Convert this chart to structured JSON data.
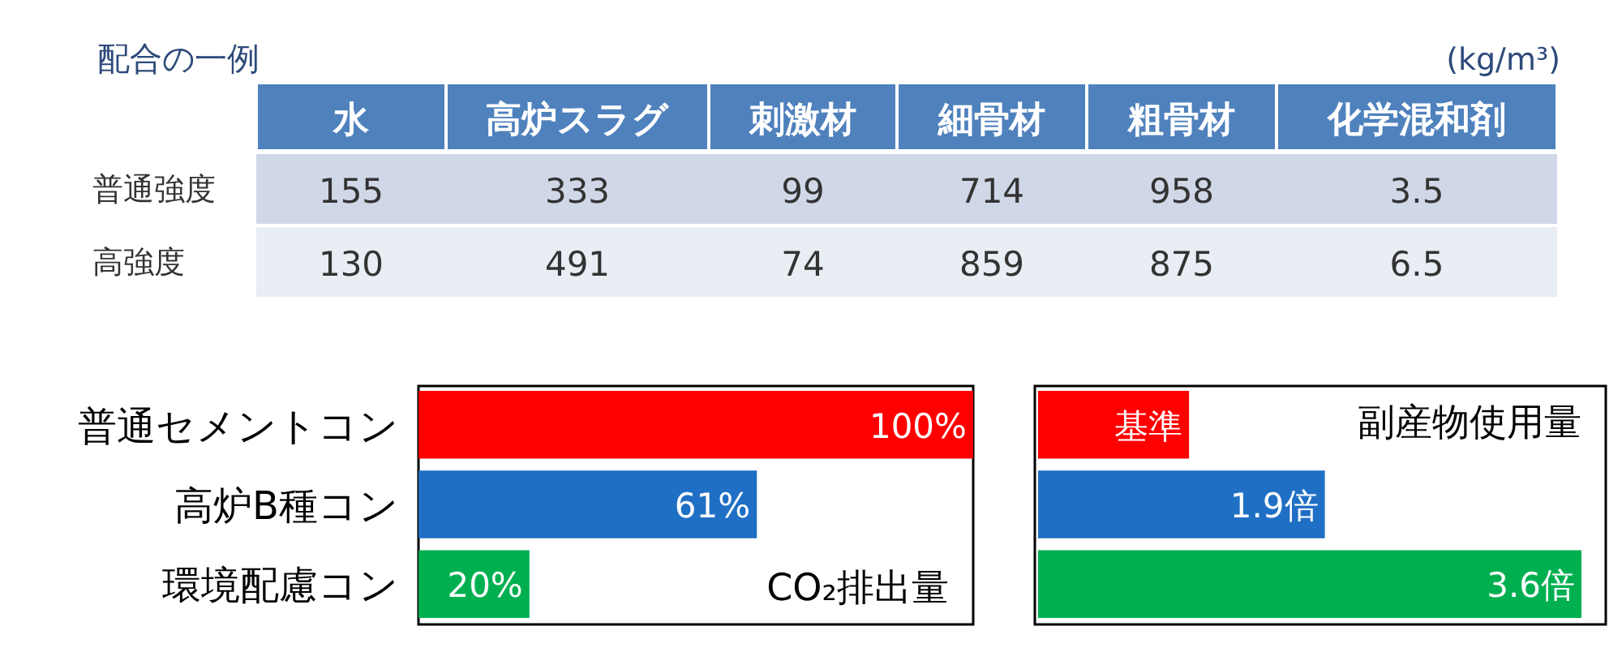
{
  "chart_data": [
    {
      "type": "heatmap",
      "data_labels": true,
      "title": "配合の一例",
      "annotations": [
        "(kg/m³)"
      ],
      "categories": [
        "水",
        "高炉スラグ",
        "刺激材",
        "細骨材",
        "粗骨材",
        "化学混和剤"
      ],
      "y_categories": [
        "普通強度",
        "高強度"
      ],
      "cells": [
        [
          155,
          333,
          99,
          714,
          958,
          3.5
        ],
        [
          130,
          491,
          74,
          859,
          875,
          6.5
        ]
      ]
    },
    {
      "type": "bar",
      "orientation": "horizontal",
      "categories": [
        "普通セメントコン",
        "高炉B種コン",
        "環境配慮コン"
      ],
      "values": [
        100,
        61,
        20
      ],
      "colors": [
        "#ff0000",
        "#1f6fc5",
        "#00b050"
      ],
      "value_labels": [
        "100%",
        "61%",
        "20%"
      ],
      "xlim": [
        0,
        100
      ],
      "annotations": [
        "CO₂排出量"
      ]
    },
    {
      "type": "bar",
      "orientation": "horizontal",
      "categories": [
        null,
        null,
        null
      ],
      "values": [
        1,
        1.9,
        3.6
      ],
      "colors": [
        "#ff0000",
        "#1f6fc5",
        "#00b050"
      ],
      "value_labels": [
        "基準",
        "1.9倍",
        "3.6倍"
      ],
      "xlim": [
        0,
        3.6
      ],
      "annotations": [
        "副産物使用量"
      ]
    }
  ]
}
